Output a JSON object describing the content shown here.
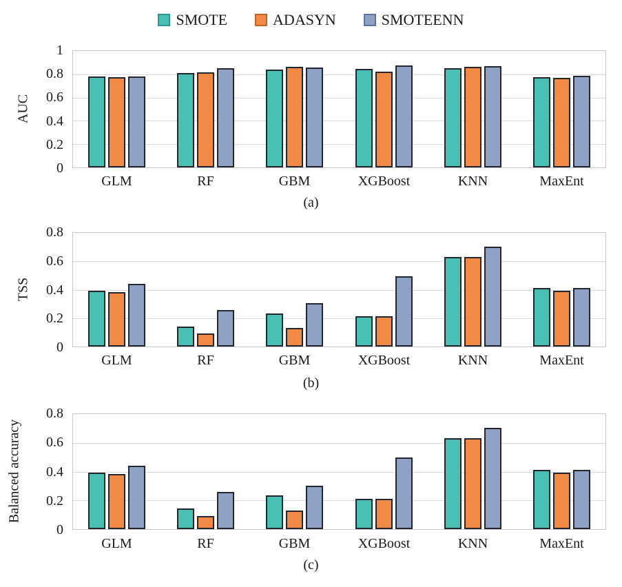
{
  "figure": {
    "legend": [
      {
        "label": "SMOTE",
        "color": "#4abfb3",
        "border": "#2e978e"
      },
      {
        "label": "ADASYN",
        "color": "#f28a45",
        "border": "#c2641f"
      },
      {
        "label": "SMOTEENN",
        "color": "#8fa2c6",
        "border": "#5c74a3"
      }
    ],
    "bar_outline_color": "#23262e",
    "gridline_color": "#d9d9d9"
  },
  "chart_data": [
    {
      "type": "bar",
      "panel": "(a)",
      "ylabel": "AUC",
      "ylim": [
        0,
        1
      ],
      "yticks": [
        0,
        0.2,
        0.4,
        0.6,
        0.8,
        1
      ],
      "grid": true,
      "legend_position": "top",
      "categories": [
        "GLM",
        "RF",
        "GBM",
        "XGBoost",
        "KNN",
        "MaxEnt"
      ],
      "series": [
        {
          "name": "SMOTE",
          "values": [
            0.77,
            0.8,
            0.83,
            0.835,
            0.845,
            0.765
          ]
        },
        {
          "name": "ADASYN",
          "values": [
            0.765,
            0.805,
            0.855,
            0.81,
            0.855,
            0.76
          ]
        },
        {
          "name": "SMOTEENN",
          "values": [
            0.77,
            0.84,
            0.85,
            0.865,
            0.86,
            0.775
          ]
        }
      ]
    },
    {
      "type": "bar",
      "panel": "(b)",
      "ylabel": "TSS",
      "ylim": [
        0,
        0.8
      ],
      "yticks": [
        0,
        0.2,
        0.4,
        0.6,
        0.8
      ],
      "grid": true,
      "legend_position": "top",
      "categories": [
        "GLM",
        "RF",
        "GBM",
        "XGBoost",
        "KNN",
        "MaxEnt"
      ],
      "series": [
        {
          "name": "SMOTE",
          "values": [
            0.39,
            0.14,
            0.23,
            0.21,
            0.625,
            0.405
          ]
        },
        {
          "name": "ADASYN",
          "values": [
            0.38,
            0.09,
            0.13,
            0.21,
            0.625,
            0.39
          ]
        },
        {
          "name": "SMOTEENN",
          "values": [
            0.435,
            0.255,
            0.3,
            0.49,
            0.695,
            0.405
          ]
        }
      ]
    },
    {
      "type": "bar",
      "panel": "(c)",
      "ylabel": "Balanced accuracy",
      "ylim": [
        0,
        0.8
      ],
      "yticks": [
        0,
        0.2,
        0.4,
        0.6,
        0.8
      ],
      "grid": true,
      "legend_position": "top",
      "categories": [
        "GLM",
        "RF",
        "GBM",
        "XGBoost",
        "KNN",
        "MaxEnt"
      ],
      "series": [
        {
          "name": "SMOTE",
          "values": [
            0.39,
            0.14,
            0.23,
            0.21,
            0.625,
            0.405
          ]
        },
        {
          "name": "ADASYN",
          "values": [
            0.38,
            0.09,
            0.13,
            0.21,
            0.625,
            0.39
          ]
        },
        {
          "name": "SMOTEENN",
          "values": [
            0.435,
            0.255,
            0.3,
            0.49,
            0.695,
            0.405
          ]
        }
      ]
    }
  ]
}
